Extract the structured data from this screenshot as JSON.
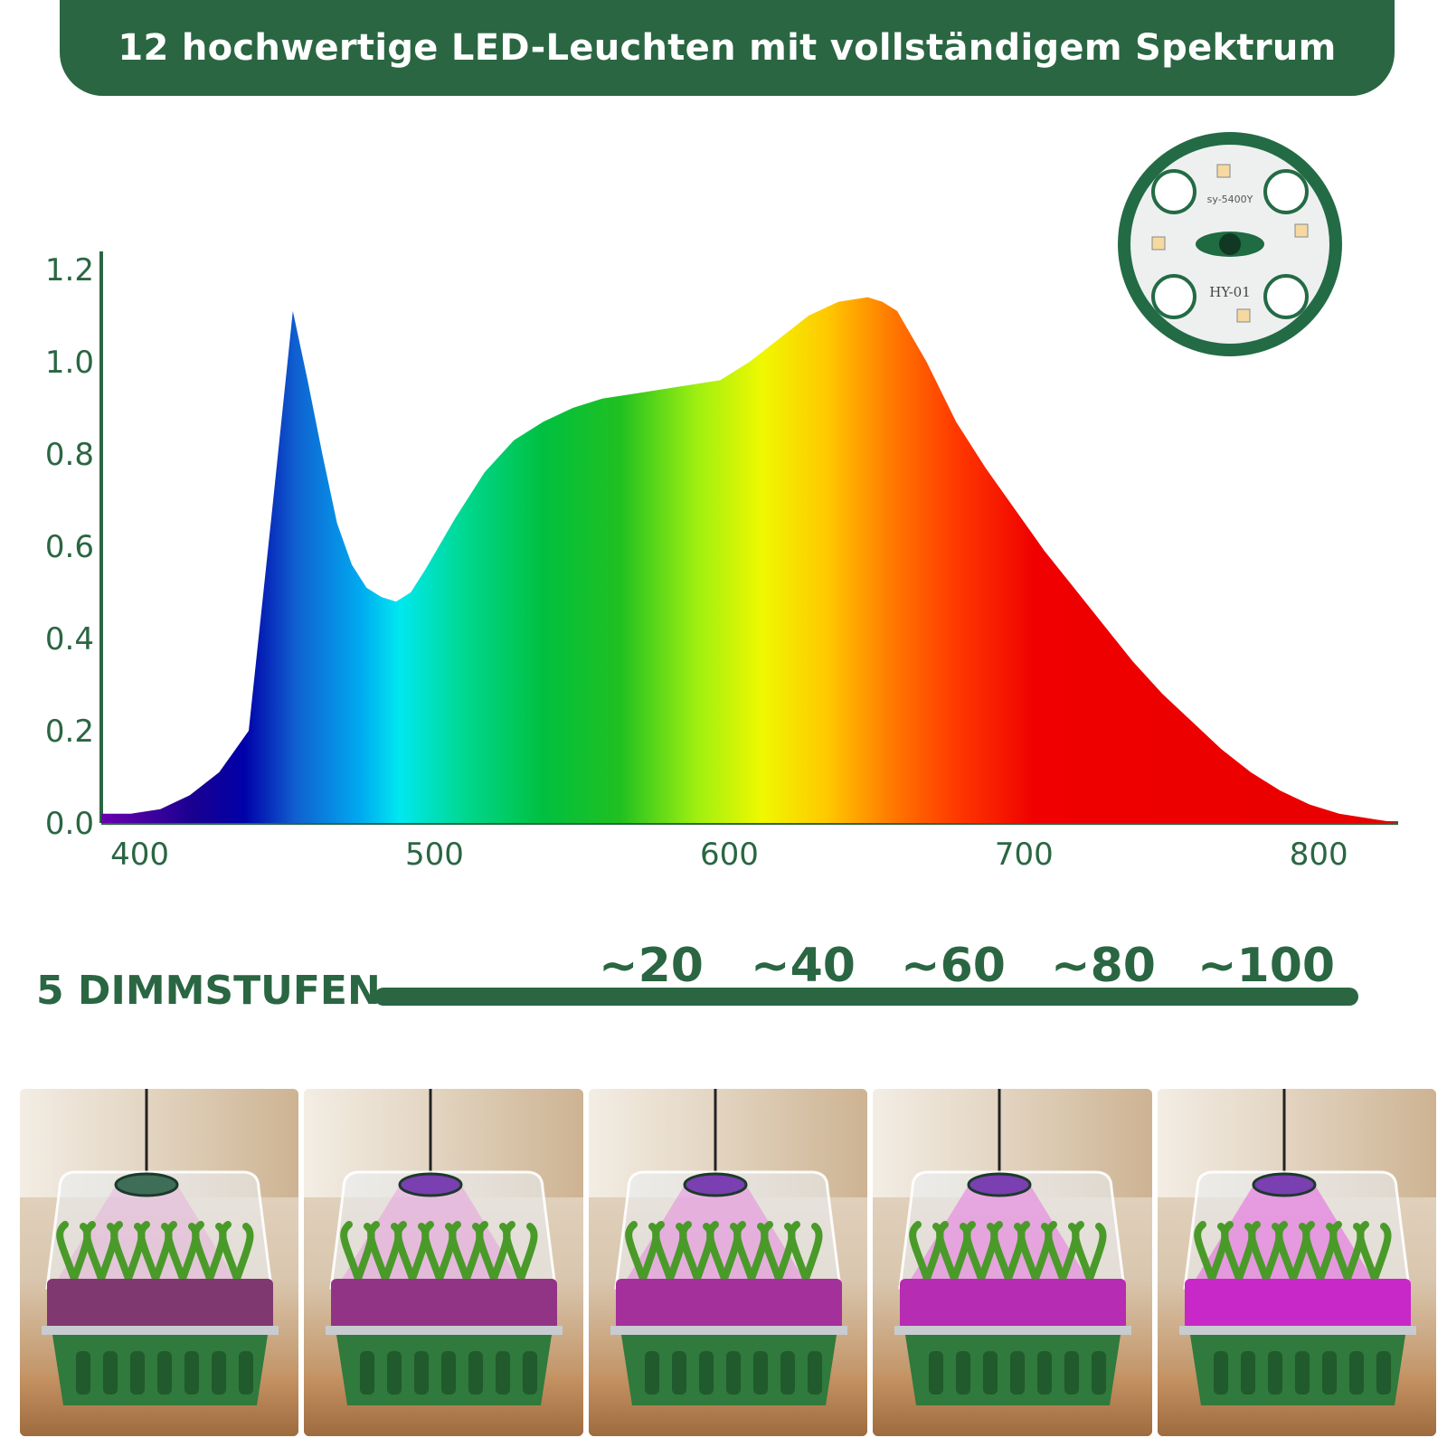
{
  "header": {
    "title": "12 hochwertige LED-Leuchten mit vollständigem Spektrum"
  },
  "chart_data": {
    "type": "area",
    "title": "",
    "xlabel": "",
    "ylabel": "",
    "x_ticks": [
      "400",
      "500",
      "600",
      "700",
      "800"
    ],
    "y_ticks": [
      "0.0",
      "0.2",
      "0.4",
      "0.6",
      "0.8",
      "1.0",
      "1.2"
    ],
    "xlim": [
      390,
      830
    ],
    "ylim": [
      0,
      1.2
    ],
    "grid": false,
    "series": [
      {
        "x": [
          390,
          400,
          410,
          420,
          430,
          440,
          448,
          455,
          460,
          465,
          470,
          475,
          480,
          485,
          490,
          495,
          500,
          510,
          520,
          530,
          540,
          550,
          560,
          570,
          580,
          590,
          600,
          610,
          620,
          630,
          640,
          650,
          655,
          660,
          670,
          680,
          690,
          700,
          710,
          720,
          730,
          740,
          750,
          760,
          770,
          780,
          790,
          800,
          810,
          820,
          830
        ],
        "values": [
          0.02,
          0.02,
          0.03,
          0.06,
          0.11,
          0.2,
          0.68,
          1.11,
          0.96,
          0.8,
          0.65,
          0.56,
          0.51,
          0.49,
          0.48,
          0.5,
          0.55,
          0.66,
          0.76,
          0.83,
          0.87,
          0.9,
          0.92,
          0.93,
          0.94,
          0.95,
          0.96,
          1.0,
          1.05,
          1.1,
          1.13,
          1.14,
          1.13,
          1.11,
          1.0,
          0.87,
          0.77,
          0.68,
          0.59,
          0.51,
          0.43,
          0.35,
          0.28,
          0.22,
          0.16,
          0.11,
          0.07,
          0.04,
          0.02,
          0.01,
          0.0
        ]
      }
    ]
  },
  "dimming": {
    "title": "5 DIMMSTUFEN",
    "levels": [
      "~20",
      "~40",
      "~60",
      "~80",
      "~100"
    ]
  },
  "pcb": {
    "model": "HY-01",
    "chip_label": "sy-5400Y"
  },
  "photos": {
    "intensities": [
      0.2,
      0.4,
      0.6,
      0.8,
      1.0
    ]
  },
  "colors": {
    "brand_green": "#2a6642"
  }
}
